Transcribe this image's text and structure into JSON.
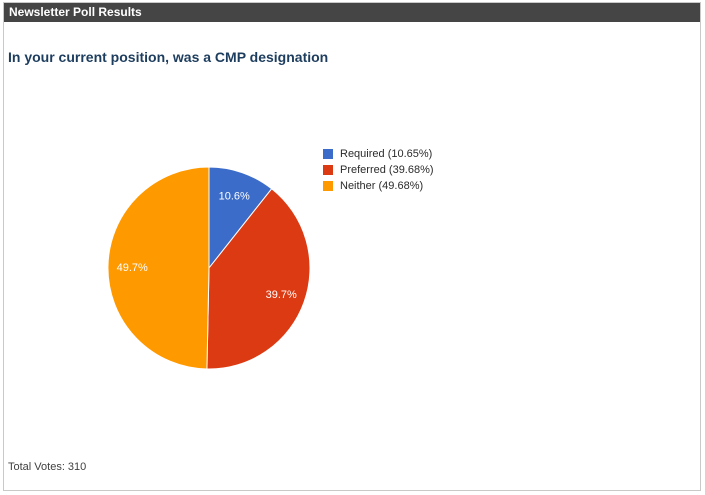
{
  "header": {
    "title": "Newsletter Poll Results"
  },
  "poll": {
    "question": "In your current position, was a CMP designation",
    "total_votes_text": "Total Votes: 310",
    "total_votes": 310
  },
  "chart_data": {
    "type": "pie",
    "title": "In your current position, was a CMP designation",
    "categories": [
      "Required",
      "Preferred",
      "Neither"
    ],
    "values": [
      10.65,
      39.68,
      49.68
    ],
    "slice_labels": [
      "10.6%",
      "39.7%",
      "49.7%"
    ],
    "legend_labels": [
      "Required (10.65%)",
      "Preferred (39.68%)",
      "Neither (49.68%)"
    ],
    "colors": [
      "#3b6cc9",
      "#dc3a13",
      "#ff9900"
    ],
    "slice_label_color": "#ffffff",
    "legend_position": "right",
    "start_angle_deg": 0,
    "direction": "clockwise"
  },
  "ui_colors": {
    "header_bar": "#454545",
    "header_text": "#ffffff",
    "question_text": "#1d3d5e",
    "frame_border": "#c9c9c9",
    "legend_text": "#2b2b2b",
    "footer_text": "#3f3f3f"
  }
}
